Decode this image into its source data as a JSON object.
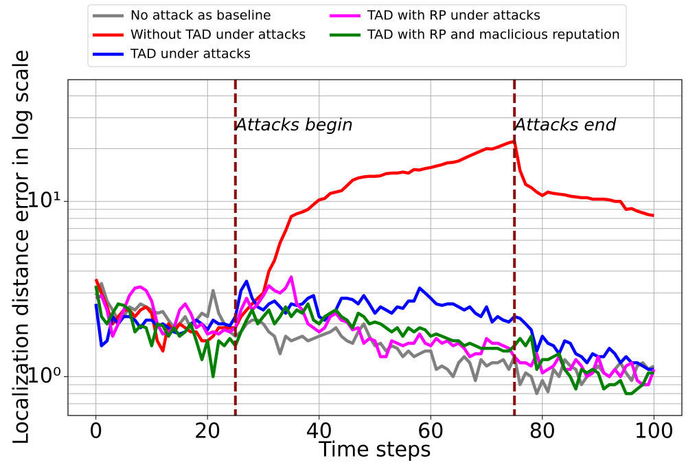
{
  "chart_data": {
    "type": "line",
    "xlabel": "Time steps",
    "ylabel": "Localization distance error in log scale",
    "yscale": "log",
    "grid": true,
    "legend": "top outside",
    "xlim": [
      -5,
      105
    ],
    "xticks": [
      0,
      20,
      40,
      60,
      80,
      100
    ],
    "ylim": [
      0.6,
      49.5
    ],
    "yticks": [
      {
        "value": 1,
        "label": "10⁰"
      },
      {
        "value": 10,
        "label": "10¹"
      }
    ],
    "yminorticks": [
      0.6,
      0.7,
      0.8,
      0.9,
      2,
      3,
      4,
      5,
      6,
      7,
      8,
      9,
      20,
      30,
      40
    ],
    "vlines": [
      25,
      75
    ],
    "vline_color": "#8b1010",
    "annotations": [
      {
        "text": "Attacks begin",
        "x": 25,
        "y": 27
      },
      {
        "text": "Attacks end",
        "x": 75,
        "y": 27
      }
    ],
    "x": [
      0,
      1,
      2,
      3,
      4,
      5,
      6,
      7,
      8,
      9,
      10,
      11,
      12,
      13,
      14,
      15,
      16,
      17,
      18,
      19,
      20,
      21,
      22,
      23,
      24,
      25,
      26,
      27,
      28,
      29,
      30,
      31,
      32,
      33,
      34,
      35,
      36,
      37,
      38,
      39,
      40,
      41,
      42,
      43,
      44,
      45,
      46,
      47,
      48,
      49,
      50,
      51,
      52,
      53,
      54,
      55,
      56,
      57,
      58,
      59,
      60,
      61,
      62,
      63,
      64,
      65,
      66,
      67,
      68,
      69,
      70,
      71,
      72,
      73,
      74,
      75,
      76,
      77,
      78,
      79,
      80,
      81,
      82,
      83,
      84,
      85,
      86,
      87,
      88,
      89,
      90,
      91,
      92,
      93,
      94,
      95,
      96,
      97,
      98,
      99,
      100
    ],
    "series": [
      {
        "name": "No attack as baseline",
        "color": "#808080",
        "values": [
          2.9,
          3.4,
          2.7,
          2.4,
          2.1,
          2.2,
          2.5,
          2.4,
          2.6,
          2.5,
          2.4,
          2.3,
          2.35,
          2.1,
          1.9,
          2.0,
          2.2,
          1.9,
          2.1,
          2.3,
          2.2,
          3.1,
          2.3,
          2.0,
          1.8,
          1.7,
          1.8,
          2.0,
          2.1,
          2.1,
          2.0,
          1.8,
          1.7,
          1.35,
          1.7,
          1.6,
          1.65,
          1.7,
          1.6,
          1.65,
          1.7,
          1.75,
          1.8,
          1.9,
          1.7,
          1.6,
          1.55,
          1.8,
          2.0,
          1.7,
          1.5,
          1.55,
          1.4,
          1.5,
          1.45,
          1.3,
          1.4,
          1.3,
          1.35,
          1.4,
          1.4,
          1.1,
          1.15,
          1.1,
          1.0,
          1.2,
          1.3,
          1.2,
          0.95,
          1.25,
          1.15,
          1.2,
          1.2,
          1.25,
          1.1,
          1.3,
          0.9,
          1.05,
          1.0,
          0.8,
          0.95,
          0.82,
          1.1,
          1.0,
          1.25,
          1.15,
          1.1,
          0.9,
          1.0,
          1.05,
          1.15,
          1.05,
          1.0,
          1.1,
          1.2,
          1.05,
          0.95,
          1.15,
          1.2,
          1.1,
          1.15
        ]
      },
      {
        "name": "Without TAD under attacks",
        "color": "#ff0000",
        "values": [
          3.6,
          3.0,
          2.5,
          2.0,
          2.2,
          2.4,
          2.4,
          2.2,
          2.4,
          2.5,
          2.3,
          1.6,
          1.4,
          2.0,
          1.8,
          2.0,
          1.9,
          1.8,
          1.8,
          1.6,
          1.6,
          1.7,
          1.9,
          1.9,
          1.9,
          1.9,
          2.2,
          2.4,
          2.6,
          2.8,
          3.0,
          4.0,
          4.6,
          5.8,
          6.8,
          8.2,
          8.5,
          8.7,
          9.0,
          9.6,
          10.2,
          10.4,
          11.1,
          11.3,
          11.5,
          12.3,
          13.2,
          13.6,
          13.8,
          13.9,
          13.9,
          14.0,
          14.4,
          14.5,
          14.5,
          14.7,
          14.5,
          15.2,
          15.1,
          15.4,
          15.6,
          15.9,
          16.2,
          16.6,
          16.7,
          17.0,
          17.6,
          18.2,
          18.8,
          19.4,
          20.0,
          19.9,
          20.4,
          21.0,
          21.6,
          22.0,
          15.0,
          12.5,
          12.0,
          11.3,
          10.8,
          11.3,
          11.1,
          11.0,
          10.9,
          10.7,
          10.6,
          10.5,
          10.5,
          10.3,
          10.3,
          10.3,
          10.2,
          10.0,
          10.0,
          9.0,
          9.1,
          8.8,
          8.6,
          8.4,
          8.3
        ]
      },
      {
        "name": "TAD under attacks",
        "color": "#0000ff",
        "values": [
          2.6,
          1.5,
          1.6,
          2.2,
          2.0,
          2.2,
          2.2,
          2.1,
          1.9,
          2.1,
          2.1,
          1.95,
          2.0,
          1.9,
          1.8,
          1.75,
          1.8,
          2.0,
          2.1,
          2.0,
          1.85,
          2.1,
          2.0,
          2.0,
          1.95,
          2.2,
          3.1,
          3.5,
          2.8,
          2.5,
          2.4,
          2.6,
          2.7,
          2.5,
          2.3,
          2.6,
          2.55,
          2.6,
          2.8,
          2.9,
          2.2,
          2.1,
          2.3,
          2.4,
          2.8,
          2.8,
          2.75,
          2.6,
          2.9,
          2.6,
          2.3,
          2.5,
          2.4,
          2.3,
          2.5,
          2.45,
          2.7,
          2.7,
          3.2,
          3.0,
          2.8,
          2.6,
          2.55,
          2.6,
          2.6,
          2.5,
          2.4,
          2.5,
          2.3,
          2.2,
          2.5,
          2.05,
          2.2,
          2.1,
          2.05,
          2.2,
          2.15,
          2.0,
          1.85,
          1.4,
          1.7,
          1.55,
          1.5,
          1.35,
          1.6,
          1.55,
          1.35,
          1.3,
          1.2,
          1.35,
          1.3,
          1.3,
          1.45,
          1.35,
          1.2,
          1.3,
          1.2,
          1.2,
          1.15,
          1.1,
          1.1
        ]
      },
      {
        "name": "TAD with RP under attacks",
        "color": "#ff00ff",
        "values": [
          2.8,
          2.9,
          2.4,
          1.7,
          2.0,
          2.4,
          2.9,
          3.2,
          3.25,
          3.1,
          2.7,
          2.0,
          1.75,
          1.8,
          1.9,
          2.4,
          2.6,
          2.3,
          1.9,
          2.0,
          1.75,
          1.8,
          1.75,
          1.85,
          1.8,
          1.9,
          2.4,
          2.8,
          2.4,
          2.6,
          2.9,
          3.3,
          3.1,
          3.0,
          3.2,
          3.7,
          2.6,
          2.4,
          2.0,
          1.9,
          1.8,
          1.9,
          2.2,
          2.3,
          2.1,
          2.05,
          1.85,
          1.9,
          1.55,
          1.65,
          1.6,
          1.3,
          1.3,
          1.6,
          1.55,
          1.5,
          1.55,
          1.55,
          1.75,
          1.55,
          1.5,
          1.65,
          1.55,
          1.6,
          1.5,
          1.55,
          1.45,
          1.3,
          1.35,
          1.35,
          1.65,
          1.55,
          1.55,
          1.5,
          1.45,
          1.3,
          1.2,
          1.2,
          1.15,
          1.35,
          1.05,
          1.1,
          1.15,
          1.3,
          1.1,
          1.1,
          1.25,
          1.15,
          1.0,
          1.05,
          1.3,
          1.05,
          1.0,
          1.1,
          1.0,
          1.15,
          1.2,
          0.95,
          0.9,
          0.9,
          1.1
        ]
      },
      {
        "name": "TAD with RP and maclicious reputation",
        "color": "#008000",
        "values": [
          3.3,
          2.2,
          2.0,
          2.3,
          2.6,
          2.55,
          2.4,
          1.8,
          1.95,
          1.9,
          1.5,
          2.0,
          1.95,
          1.7,
          1.9,
          1.7,
          1.8,
          2.0,
          1.6,
          1.25,
          1.6,
          1.0,
          1.6,
          1.5,
          1.65,
          1.5,
          1.8,
          2.1,
          2.4,
          2.0,
          2.2,
          2.4,
          2.0,
          2.2,
          2.5,
          2.2,
          2.4,
          2.3,
          2.6,
          2.1,
          2.0,
          2.2,
          2.3,
          2.4,
          2.2,
          2.1,
          1.9,
          2.3,
          2.2,
          2.0,
          2.05,
          2.0,
          1.9,
          1.8,
          1.9,
          1.7,
          1.9,
          1.8,
          1.9,
          1.85,
          1.7,
          1.75,
          1.7,
          1.65,
          1.6,
          1.6,
          1.5,
          1.55,
          1.5,
          1.45,
          1.45,
          1.45,
          1.45,
          1.4,
          1.4,
          1.5,
          1.65,
          1.5,
          1.7,
          1.1,
          1.25,
          1.25,
          1.3,
          1.35,
          1.1,
          1.0,
          0.85,
          1.1,
          1.05,
          1.1,
          1.05,
          0.85,
          0.9,
          0.9,
          0.95,
          0.8,
          0.8,
          0.85,
          0.9,
          1.05,
          1.05
        ]
      }
    ]
  }
}
